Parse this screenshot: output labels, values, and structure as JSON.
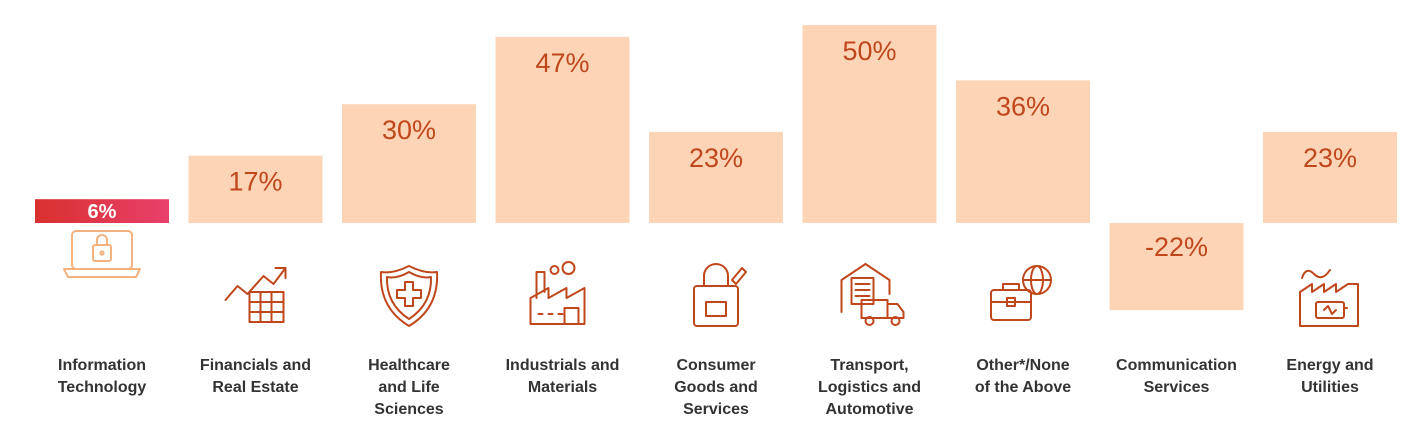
{
  "chart_data": {
    "type": "bar",
    "categories": [
      [
        "Information",
        "Technology"
      ],
      [
        "Financials and",
        "Real Estate"
      ],
      [
        "Healthcare",
        "and Life",
        "Sciences"
      ],
      [
        "Industrials and",
        "Materials"
      ],
      [
        "Consumer",
        "Goods and",
        "Services"
      ],
      [
        "Transport,",
        "Logistics and",
        "Automotive"
      ],
      [
        "Other*/None",
        "of the Above"
      ],
      [
        "Communication",
        "Services"
      ],
      [
        "Energy and",
        "Utilities"
      ]
    ],
    "values": [
      6,
      17,
      30,
      47,
      23,
      50,
      36,
      -22,
      23
    ],
    "value_labels": [
      "6%",
      "17%",
      "30%",
      "47%",
      "23%",
      "50%",
      "36%",
      "-22%",
      "23%"
    ],
    "highlighted_index": 0,
    "icons": [
      "laptop-lock-icon",
      "growth-chart-icon",
      "medical-shield-icon",
      "factory-icon",
      "shopping-bag-icon",
      "warehouse-truck-icon",
      "briefcase-globe-icon",
      "",
      "energy-plant-icon"
    ],
    "colors": {
      "bar": "#fdd5b6",
      "highlight_start": "#d9312f",
      "highlight_end": "#e8406a",
      "value_text": "#c0471c",
      "icon": "#c0471c",
      "icon_muted": "#f3b27e",
      "category_text": "#333333"
    },
    "title": "",
    "xlabel": "",
    "ylabel": ""
  }
}
